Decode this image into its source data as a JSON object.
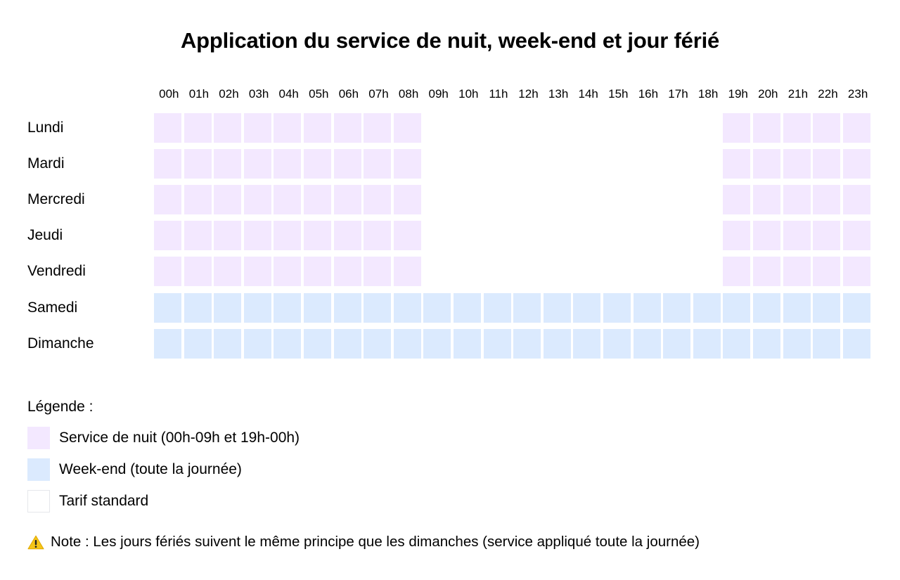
{
  "title": "Application du service de nuit, week-end et jour férié",
  "colors": {
    "night": "#f3e8ff",
    "weekend": "#dbeafe",
    "standard": "#ffffff",
    "standard_border": "#e5e7eb",
    "warning": "#f5c518"
  },
  "chart_data": {
    "type": "heatmap",
    "title": "Application du service de nuit, week-end et jour férié",
    "x": [
      "00h",
      "01h",
      "02h",
      "03h",
      "04h",
      "05h",
      "06h",
      "07h",
      "08h",
      "09h",
      "10h",
      "11h",
      "12h",
      "13h",
      "14h",
      "15h",
      "16h",
      "17h",
      "18h",
      "19h",
      "20h",
      "21h",
      "22h",
      "23h"
    ],
    "y": [
      "Lundi",
      "Mardi",
      "Mercredi",
      "Jeudi",
      "Vendredi",
      "Samedi",
      "Dimanche"
    ],
    "values": [
      [
        "night",
        "night",
        "night",
        "night",
        "night",
        "night",
        "night",
        "night",
        "night",
        "standard",
        "standard",
        "standard",
        "standard",
        "standard",
        "standard",
        "standard",
        "standard",
        "standard",
        "standard",
        "night",
        "night",
        "night",
        "night",
        "night"
      ],
      [
        "night",
        "night",
        "night",
        "night",
        "night",
        "night",
        "night",
        "night",
        "night",
        "standard",
        "standard",
        "standard",
        "standard",
        "standard",
        "standard",
        "standard",
        "standard",
        "standard",
        "standard",
        "night",
        "night",
        "night",
        "night",
        "night"
      ],
      [
        "night",
        "night",
        "night",
        "night",
        "night",
        "night",
        "night",
        "night",
        "night",
        "standard",
        "standard",
        "standard",
        "standard",
        "standard",
        "standard",
        "standard",
        "standard",
        "standard",
        "standard",
        "night",
        "night",
        "night",
        "night",
        "night"
      ],
      [
        "night",
        "night",
        "night",
        "night",
        "night",
        "night",
        "night",
        "night",
        "night",
        "standard",
        "standard",
        "standard",
        "standard",
        "standard",
        "standard",
        "standard",
        "standard",
        "standard",
        "standard",
        "night",
        "night",
        "night",
        "night",
        "night"
      ],
      [
        "night",
        "night",
        "night",
        "night",
        "night",
        "night",
        "night",
        "night",
        "night",
        "standard",
        "standard",
        "standard",
        "standard",
        "standard",
        "standard",
        "standard",
        "standard",
        "standard",
        "standard",
        "night",
        "night",
        "night",
        "night",
        "night"
      ],
      [
        "weekend",
        "weekend",
        "weekend",
        "weekend",
        "weekend",
        "weekend",
        "weekend",
        "weekend",
        "weekend",
        "weekend",
        "weekend",
        "weekend",
        "weekend",
        "weekend",
        "weekend",
        "weekend",
        "weekend",
        "weekend",
        "weekend",
        "weekend",
        "weekend",
        "weekend",
        "weekend",
        "weekend"
      ],
      [
        "weekend",
        "weekend",
        "weekend",
        "weekend",
        "weekend",
        "weekend",
        "weekend",
        "weekend",
        "weekend",
        "weekend",
        "weekend",
        "weekend",
        "weekend",
        "weekend",
        "weekend",
        "weekend",
        "weekend",
        "weekend",
        "weekend",
        "weekend",
        "weekend",
        "weekend",
        "weekend",
        "weekend"
      ]
    ],
    "legend_title": "Légende :",
    "legend": [
      {
        "category": "night",
        "label": "Service de nuit (00h-09h et 19h-00h)"
      },
      {
        "category": "weekend",
        "label": "Week-end (toute la journée)"
      },
      {
        "category": "standard",
        "label": "Tarif standard"
      }
    ],
    "legend_placement": "bottom-left"
  },
  "note": {
    "icon": "warning-icon",
    "text": "Note : Les jours fériés suivent le même principe que les dimanches (service appliqué toute la journée)"
  }
}
